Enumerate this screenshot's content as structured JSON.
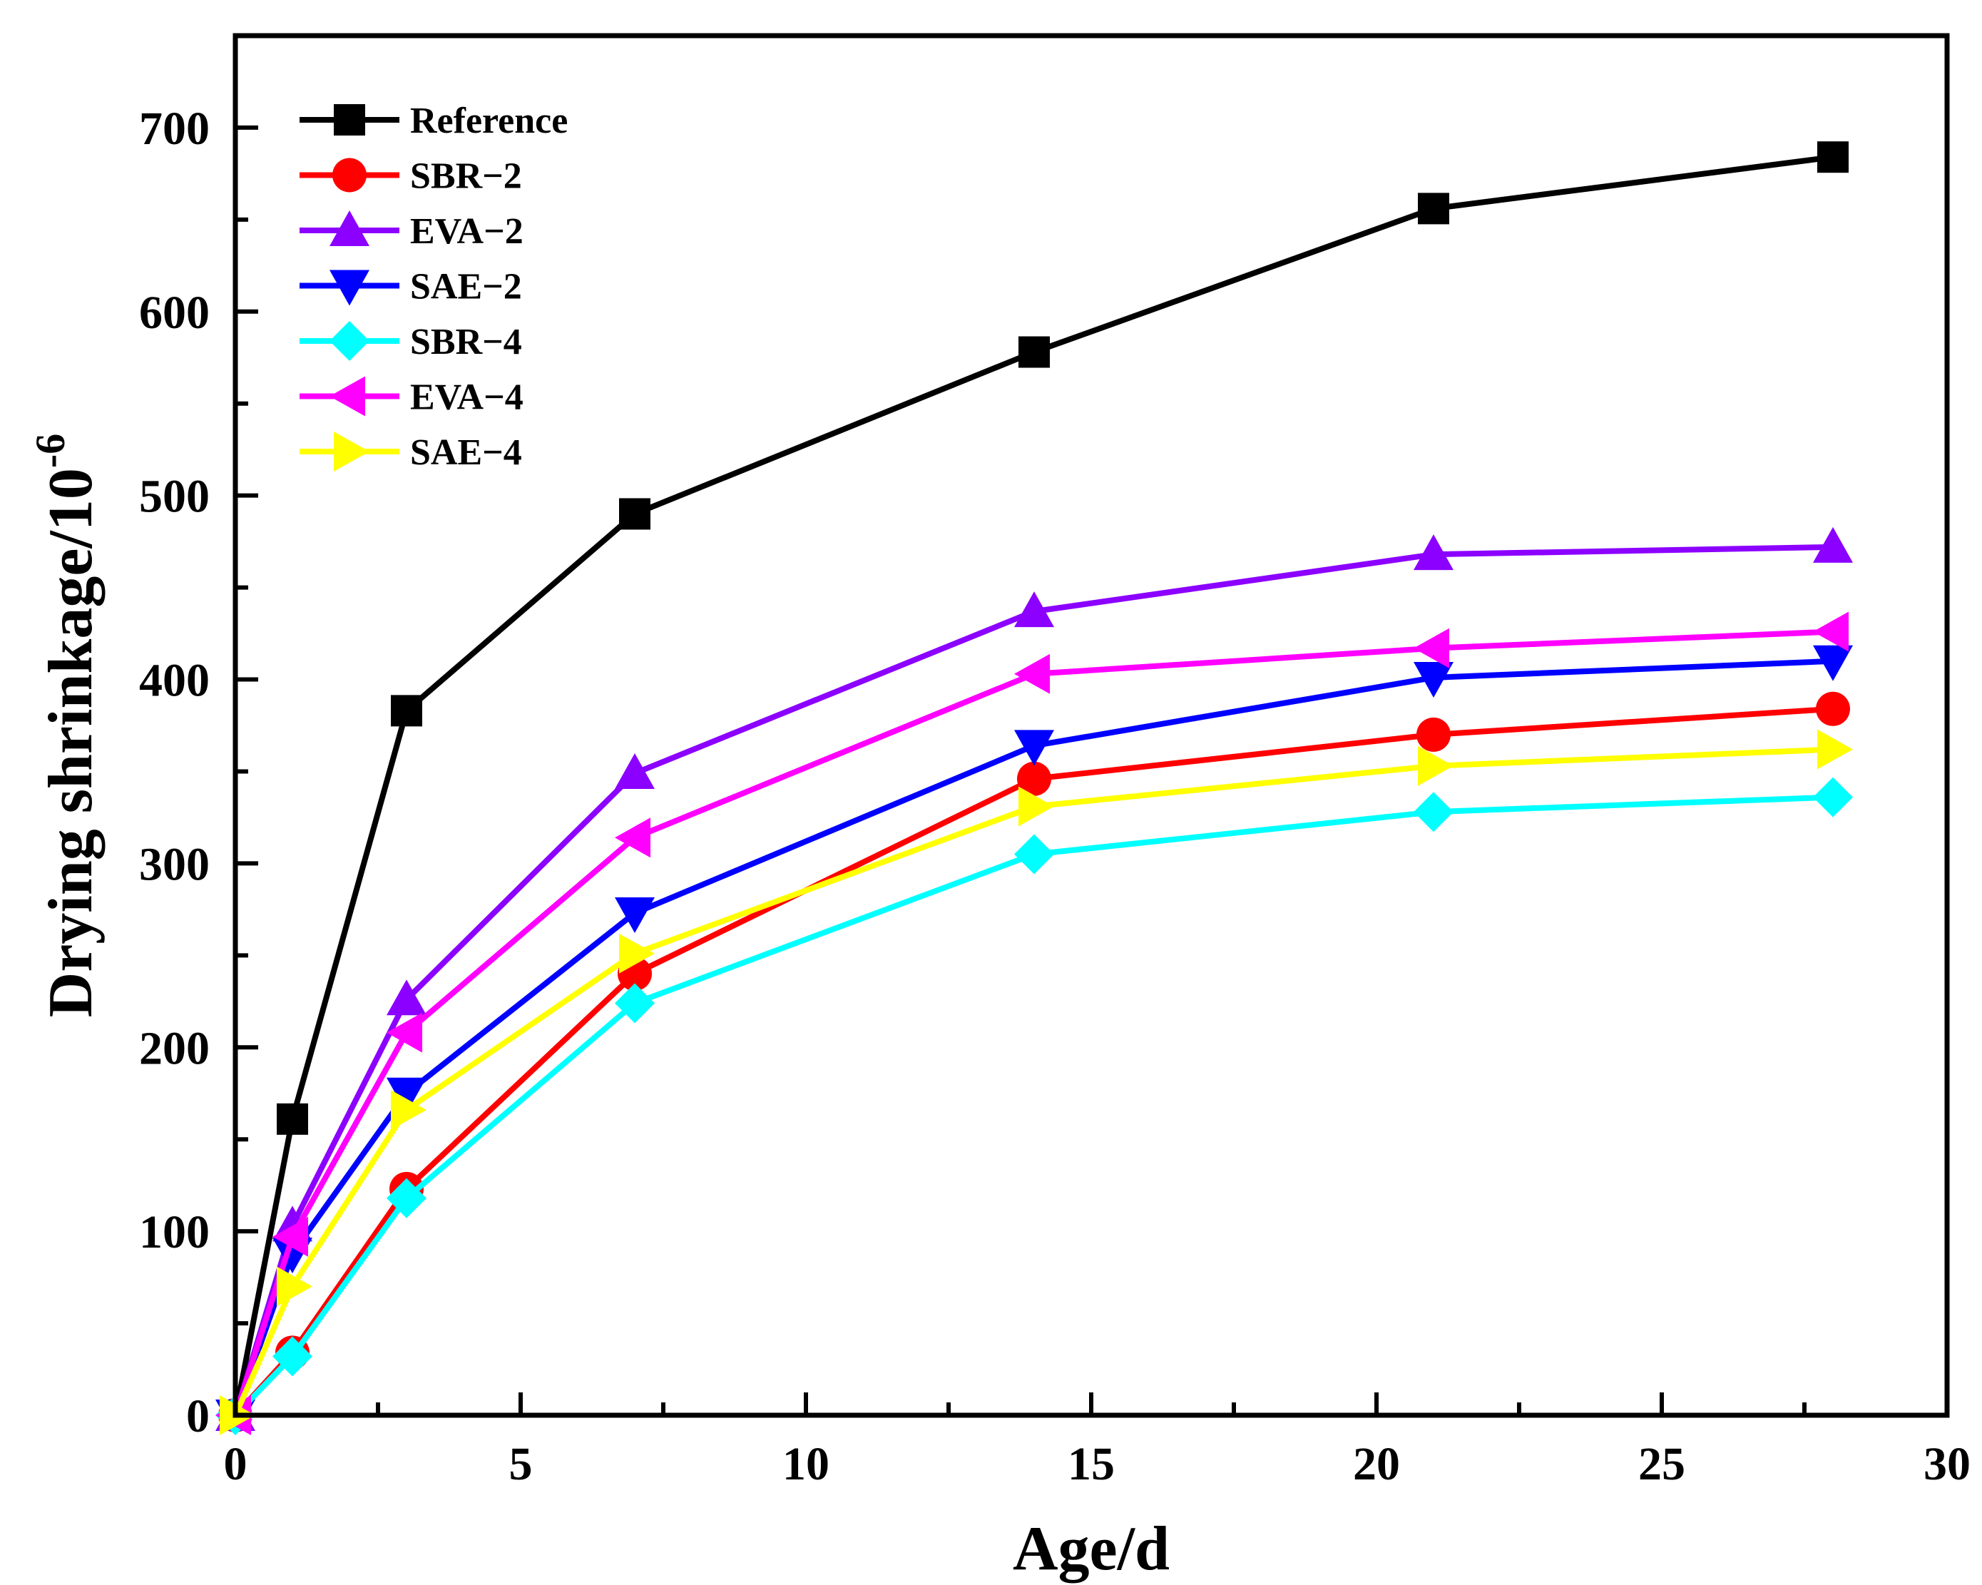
{
  "chart_data": {
    "type": "line",
    "title": "",
    "xlabel": "Age/d",
    "ylabel_main": "Drying shrinkage/10",
    "ylabel_exp": "-6",
    "xlim": [
      0,
      30
    ],
    "ylim": [
      0,
      750
    ],
    "xticks": [
      0,
      5,
      10,
      15,
      20,
      25,
      30
    ],
    "yticks": [
      0,
      100,
      200,
      300,
      400,
      500,
      600,
      700
    ],
    "x": [
      0,
      1,
      3,
      7,
      14,
      21,
      28
    ],
    "legend_position": "top-left",
    "grid": false,
    "series": [
      {
        "name": "Reference",
        "color": "#000000",
        "marker": "square",
        "values": [
          0,
          161,
          383,
          490,
          578,
          656,
          684
        ]
      },
      {
        "name": "SBR−2",
        "color": "#ff0000",
        "marker": "circle",
        "values": [
          0,
          34,
          123,
          240,
          346,
          370,
          384
        ]
      },
      {
        "name": "EVA−2",
        "color": "#8b00ff",
        "marker": "triangle-up",
        "values": [
          0,
          103,
          226,
          349,
          437,
          468,
          472
        ]
      },
      {
        "name": "SAE−2",
        "color": "#0000ff",
        "marker": "triangle-down",
        "values": [
          0,
          88,
          175,
          273,
          364,
          401,
          410
        ]
      },
      {
        "name": "SBR−4",
        "color": "#00ffff",
        "marker": "diamond",
        "values": [
          0,
          32,
          118,
          224,
          305,
          328,
          336
        ]
      },
      {
        "name": "EVA−4",
        "color": "#ff00ff",
        "marker": "triangle-left",
        "values": [
          0,
          97,
          208,
          314,
          403,
          417,
          426
        ]
      },
      {
        "name": "SAE−4",
        "color": "#ffff00",
        "marker": "triangle-right",
        "values": [
          0,
          70,
          166,
          251,
          331,
          353,
          362
        ]
      }
    ]
  }
}
